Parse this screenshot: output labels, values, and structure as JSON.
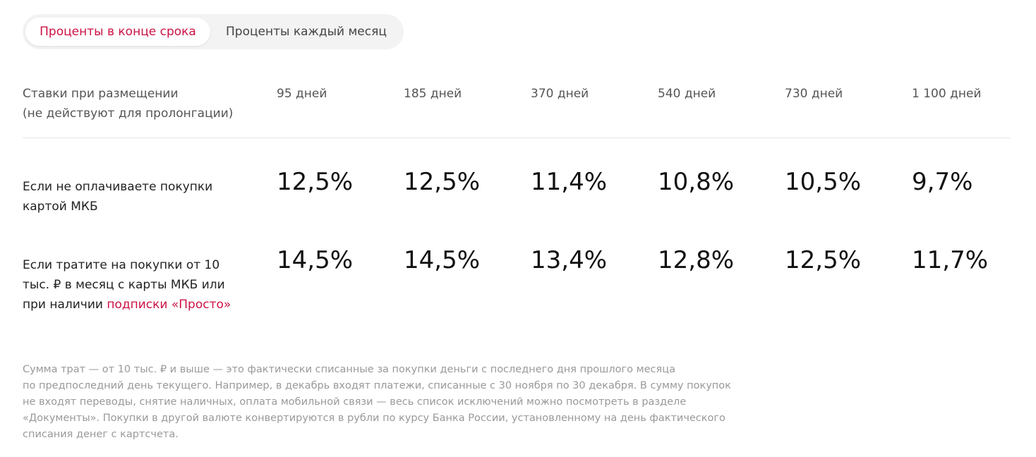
{
  "tabs": [
    "Проценты в конце срока",
    "Проценты каждый месяц"
  ],
  "table": {
    "header": {
      "label_lines": [
        "Ставки при размещении",
        "(не действуют для пролонгации)"
      ],
      "columns": [
        "95 дней",
        "185 дней",
        "370 дней",
        "540 дней",
        "730 дней",
        "1 100 дней"
      ]
    },
    "rows": [
      {
        "label": "Если не оплачиваете покупки картой МКБ",
        "values": [
          "12,5%",
          "12,5%",
          "11,4%",
          "10,8%",
          "10,5%",
          "9,7%"
        ]
      },
      {
        "label": "Если тратите на покупки от 10 тыс. ₽ в месяц с карты МКБ или при наличии",
        "link": "подписки «Просто»",
        "values": [
          "14,5%",
          "14,5%",
          "13,4%",
          "12,8%",
          "12,5%",
          "11,7%"
        ]
      }
    ]
  },
  "footnote": [
    "Сумма трат — от 10 тыс. ₽ и выше — это фактически списанные за покупки деньги с последнего дня прошлого месяца",
    "по предпоследний день текущего. Например, в декабрь входят платежи, списанные с 30 ноября по 30 декабря. В сумму покупок",
    "не входят переводы, снятие наличных, оплата мобильной связи — весь список исключений можно посмотреть в разделе",
    "«Документы». Покупки в другой валюте конвертируются в рубли по курсу Банка России, установленному на день фактического",
    "списания денег с картсчета."
  ]
}
